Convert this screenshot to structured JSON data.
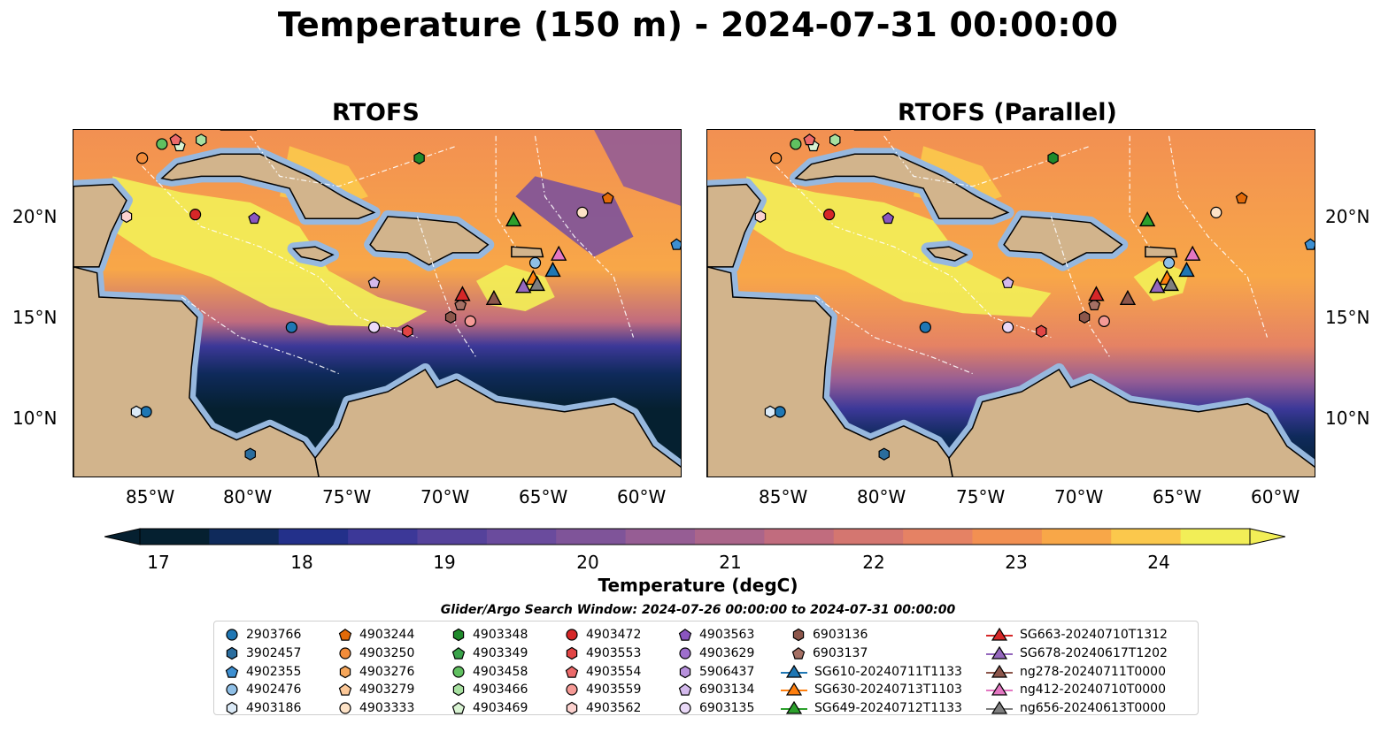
{
  "figure": {
    "title": "Temperature (150 m) - 2024-07-31 00:00:00",
    "panels": [
      {
        "title": "RTOFS"
      },
      {
        "title": "RTOFS (Parallel)"
      }
    ],
    "lat_ticks": [
      "20°N",
      "15°N",
      "10°N"
    ],
    "lon_ticks": [
      "85°W",
      "80°W",
      "75°W",
      "70°W",
      "65°W",
      "60°W"
    ],
    "colorbar": {
      "label": "Temperature (degC)",
      "ticks": [
        "17",
        "18",
        "19",
        "20",
        "21",
        "22",
        "23",
        "24"
      ],
      "extend": "both",
      "colors": [
        "#052030",
        "#0f2a5b",
        "#23308a",
        "#3c3898",
        "#55429b",
        "#6a4b9d",
        "#7f5499",
        "#965d94",
        "#ab658a",
        "#c16c7e",
        "#d47670",
        "#e58264",
        "#f29052",
        "#f8a748",
        "#fbc84c",
        "#f2ee57"
      ]
    },
    "colors": {
      "land": "#d2b48c",
      "shelf": "#97b8de",
      "coast": "#000000"
    }
  },
  "legend": {
    "title": "Glider/Argo Search Window: 2024-07-26 00:00:00 to 2024-07-31 00:00:00",
    "entries": [
      {
        "label": "2903766",
        "marker": "circle",
        "color": "#1f77b4"
      },
      {
        "label": "3902457",
        "marker": "hexagon",
        "color": "#2a6d9e"
      },
      {
        "label": "4902355",
        "marker": "pentagon",
        "color": "#3d8fd1"
      },
      {
        "label": "4902476",
        "marker": "circle",
        "color": "#8fbfe6"
      },
      {
        "label": "4903186",
        "marker": "hexagon",
        "color": "#dbeaf7"
      },
      {
        "label": "4903244",
        "marker": "pentagon",
        "color": "#e36a08"
      },
      {
        "label": "4903250",
        "marker": "circle",
        "color": "#f28c3a"
      },
      {
        "label": "4903276",
        "marker": "hexagon",
        "color": "#f6a65a"
      },
      {
        "label": "4903279",
        "marker": "pentagon",
        "color": "#fbc797"
      },
      {
        "label": "4903333",
        "marker": "circle",
        "color": "#fde2c6"
      },
      {
        "label": "4903348",
        "marker": "hexagon",
        "color": "#1f8a2b"
      },
      {
        "label": "4903349",
        "marker": "pentagon",
        "color": "#3aa34a"
      },
      {
        "label": "4903458",
        "marker": "circle",
        "color": "#60c060"
      },
      {
        "label": "4903466",
        "marker": "hexagon",
        "color": "#a7e0a0"
      },
      {
        "label": "4903469",
        "marker": "pentagon",
        "color": "#d8f3d2"
      },
      {
        "label": "4903472",
        "marker": "circle",
        "color": "#d62728"
      },
      {
        "label": "4903553",
        "marker": "hexagon",
        "color": "#e14545"
      },
      {
        "label": "4903554",
        "marker": "pentagon",
        "color": "#ec6a6a"
      },
      {
        "label": "4903559",
        "marker": "circle",
        "color": "#f59a96"
      },
      {
        "label": "4903562",
        "marker": "hexagon",
        "color": "#fcd2cf"
      },
      {
        "label": "4903563",
        "marker": "pentagon",
        "color": "#8a55c0"
      },
      {
        "label": "4903629",
        "marker": "circle",
        "color": "#9e6fcd"
      },
      {
        "label": "5906437",
        "marker": "hexagon",
        "color": "#b790dc"
      },
      {
        "label": "6903134",
        "marker": "pentagon",
        "color": "#d3b9ec"
      },
      {
        "label": "6903135",
        "marker": "circle",
        "color": "#ead9f8"
      },
      {
        "label": "6903136",
        "marker": "hexagon",
        "color": "#8c564b"
      },
      {
        "label": "6903137",
        "marker": "pentagon",
        "color": "#a57064"
      },
      {
        "label": "SG610-20240711T1133",
        "marker": "triangle-line",
        "color": "#1f77b4"
      },
      {
        "label": "SG630-20240713T1103",
        "marker": "triangle-line",
        "color": "#ff7f0e"
      },
      {
        "label": "SG649-20240712T1133",
        "marker": "triangle-line",
        "color": "#2ca02c"
      },
      {
        "label": "SG663-20240710T1312",
        "marker": "triangle-line",
        "color": "#d62728"
      },
      {
        "label": "SG678-20240617T1202",
        "marker": "triangle-line",
        "color": "#9467bd"
      },
      {
        "label": "ng278-20240711T0000",
        "marker": "triangle-line",
        "color": "#8c564b"
      },
      {
        "label": "ng412-20240710T0000",
        "marker": "triangle-line",
        "color": "#e377c2"
      },
      {
        "label": "ng656-20240613T0000",
        "marker": "triangle-line",
        "color": "#7f7f7f"
      }
    ]
  }
}
